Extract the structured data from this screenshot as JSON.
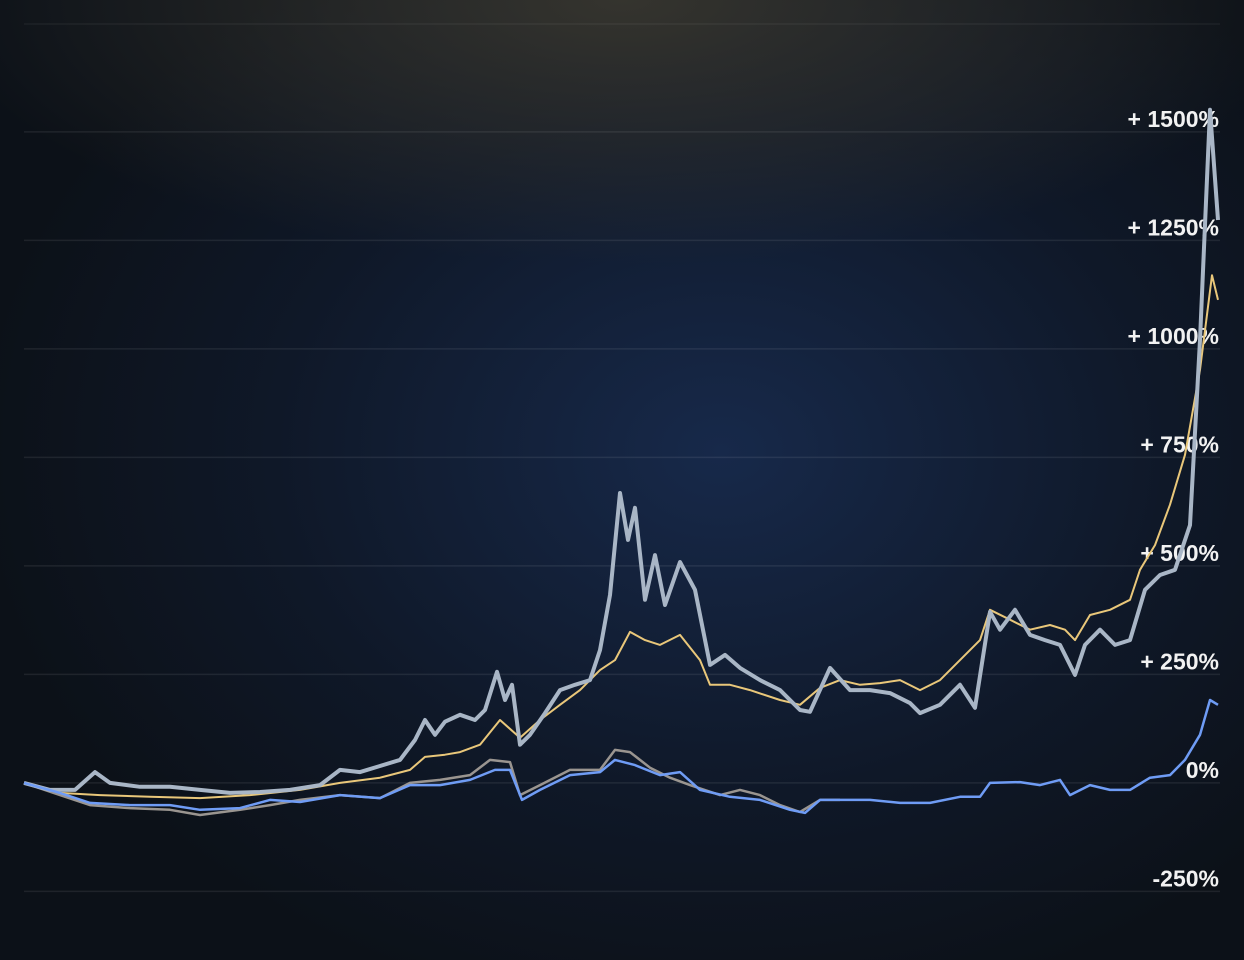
{
  "chart_data": {
    "type": "line",
    "xlim": [
      0,
      1194
    ],
    "ylim": [
      -408,
      1804
    ],
    "yticks": [
      {
        "value": 1500,
        "label": "+ 1500%"
      },
      {
        "value": 1250,
        "label": "+ 1250%"
      },
      {
        "value": 1000,
        "label": "+ 1000%"
      },
      {
        "value": 750,
        "label": "+ 750%"
      },
      {
        "value": 500,
        "label": "+ 500%"
      },
      {
        "value": 250,
        "label": "+ 250%"
      },
      {
        "value": 0,
        "label": "0%"
      },
      {
        "value": -250,
        "label": "-250%"
      }
    ],
    "grid": true,
    "series": [
      {
        "color": "#9a9590",
        "width": 2.5,
        "x": [
          0,
          36,
          66,
          106,
          146,
          176,
          216,
          246,
          276,
          316,
          356,
          386,
          416,
          446,
          466,
          486,
          496,
          516,
          546,
          576,
          591,
          606,
          626,
          646,
          666,
          696,
          716,
          736,
          756,
          776,
          796,
          816
        ],
        "values": [
          0,
          -28,
          -51,
          -58,
          -62,
          -74,
          -62,
          -51,
          -39,
          -28,
          -35,
          0,
          7,
          18,
          53,
          48,
          -28,
          -5,
          30,
          30,
          76,
          71,
          35,
          12,
          -5,
          -28,
          -16,
          -28,
          -51,
          -67,
          -39,
          -39
        ]
      },
      {
        "color": "#e9c77a",
        "width": 2,
        "x": [
          0,
          36,
          76,
          126,
          176,
          226,
          276,
          316,
          356,
          386,
          401,
          421,
          436,
          456,
          476,
          496,
          516,
          536,
          556,
          576,
          591,
          606,
          621,
          636,
          656,
          676,
          686,
          706,
          726,
          756,
          776,
          796,
          816,
          836,
          856,
          876,
          896,
          916,
          936,
          956,
          966,
          986,
          1006,
          1026,
          1041,
          1051,
          1066,
          1086,
          1106,
          1116,
          1131,
          1146,
          1161,
          1176,
          1188,
          1194
        ],
        "values": [
          0,
          -23,
          -28,
          -32,
          -35,
          -28,
          -16,
          0,
          12,
          30,
          60,
          65,
          71,
          88,
          145,
          104,
          145,
          180,
          214,
          260,
          283,
          348,
          329,
          318,
          341,
          283,
          226,
          226,
          214,
          191,
          180,
          219,
          237,
          226,
          230,
          237,
          214,
          237,
          283,
          329,
          399,
          376,
          353,
          364,
          353,
          329,
          387,
          399,
          422,
          491,
          548,
          641,
          756,
          952,
          1170,
          1113
        ]
      },
      {
        "color": "#a9b6c6",
        "width": 4,
        "x": [
          0,
          26,
          51,
          71,
          86,
          116,
          146,
          176,
          206,
          236,
          266,
          296,
          316,
          336,
          356,
          376,
          391,
          401,
          411,
          421,
          436,
          451,
          461,
          473,
          481,
          488,
          496,
          506,
          521,
          536,
          551,
          566,
          576,
          586,
          596,
          604,
          611,
          621,
          631,
          641,
          656,
          671,
          686,
          701,
          716,
          736,
          756,
          776,
          786,
          806,
          826,
          846,
          866,
          886,
          896,
          916,
          936,
          951,
          966,
          976,
          991,
          1006,
          1021,
          1036,
          1051,
          1061,
          1076,
          1091,
          1106,
          1121,
          1136,
          1151,
          1166,
          1176,
          1186,
          1194
        ],
        "values": [
          0,
          -16,
          -16,
          25,
          0,
          -9,
          -9,
          -16,
          -23,
          -21,
          -16,
          -5,
          30,
          25,
          39,
          53,
          99,
          145,
          111,
          141,
          157,
          145,
          168,
          256,
          191,
          226,
          88,
          111,
          161,
          214,
          226,
          237,
          306,
          433,
          668,
          560,
          634,
          422,
          525,
          410,
          509,
          445,
          272,
          295,
          265,
          237,
          214,
          168,
          164,
          265,
          214,
          214,
          207,
          184,
          161,
          180,
          226,
          173,
          394,
          353,
          399,
          341,
          329,
          318,
          249,
          318,
          353,
          318,
          329,
          445,
          479,
          491,
          594,
          1021,
          1551,
          1297
        ]
      },
      {
        "color": "#6f9cf5",
        "width": 2.5,
        "x": [
          0,
          36,
          66,
          106,
          146,
          176,
          216,
          246,
          276,
          316,
          356,
          386,
          416,
          446,
          471,
          486,
          498,
          516,
          546,
          576,
          591,
          611,
          636,
          656,
          676,
          706,
          736,
          766,
          781,
          796,
          816,
          846,
          876,
          906,
          936,
          956,
          966,
          996,
          1016,
          1036,
          1046,
          1066,
          1086,
          1106,
          1126,
          1146,
          1161,
          1176,
          1186,
          1194
        ],
        "values": [
          0,
          -23,
          -46,
          -51,
          -51,
          -62,
          -58,
          -39,
          -44,
          -28,
          -35,
          -5,
          -5,
          7,
          30,
          30,
          -39,
          -16,
          18,
          25,
          53,
          41,
          18,
          25,
          -16,
          -32,
          -39,
          -62,
          -69,
          -39,
          -39,
          -39,
          -46,
          -46,
          -32,
          -32,
          0,
          2,
          -5,
          7,
          -28,
          -5,
          -16,
          -16,
          12,
          18,
          53,
          111,
          191,
          180
        ]
      }
    ]
  }
}
